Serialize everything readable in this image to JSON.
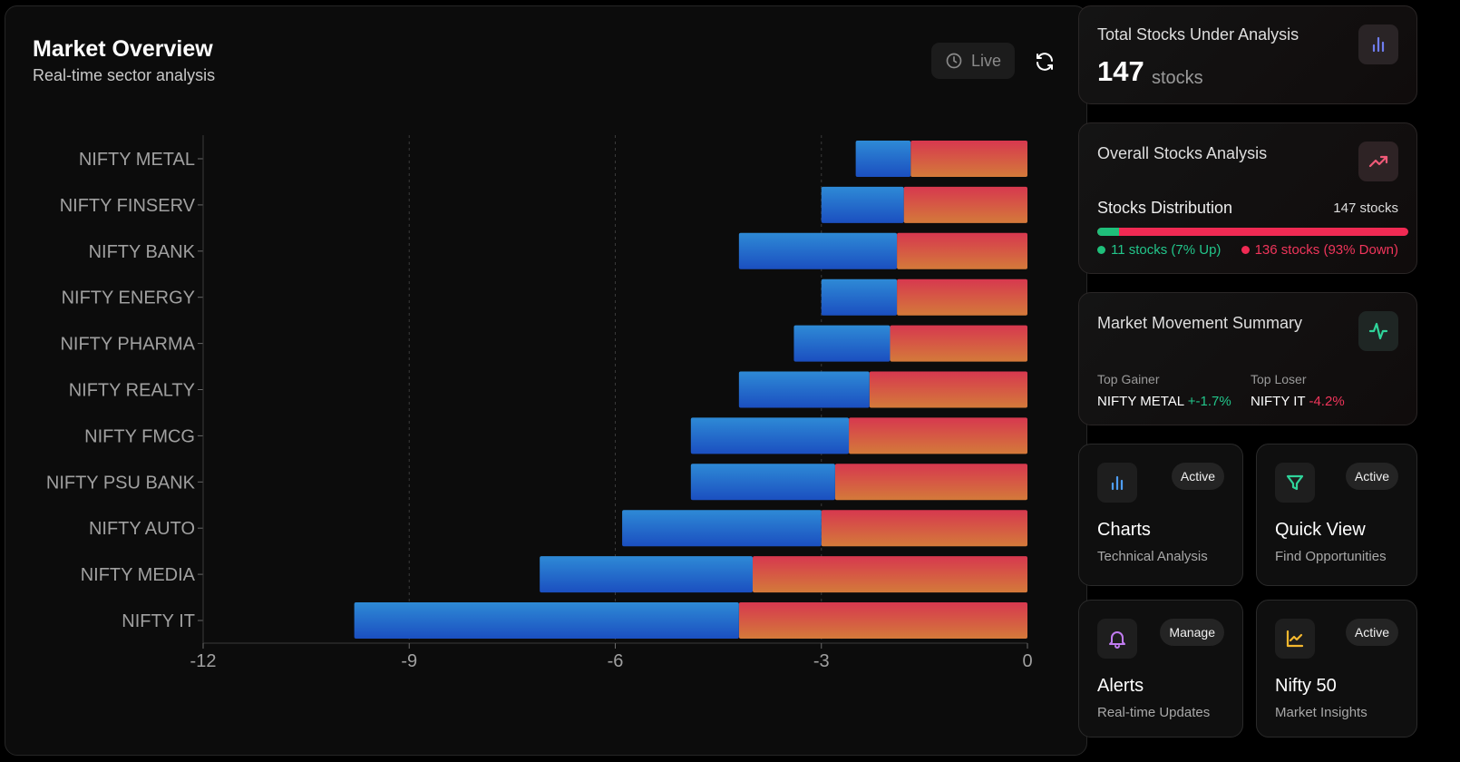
{
  "header": {
    "title": "Market Overview",
    "subtitle": "Real-time sector analysis",
    "live_label": "Live"
  },
  "chart_data": {
    "type": "bar",
    "orientation": "horizontal",
    "stacked": true,
    "title": "",
    "xlabel": "",
    "ylabel": "",
    "xlim": [
      -12,
      0
    ],
    "x_ticks": [
      -12,
      -9,
      -6,
      -3,
      0
    ],
    "grid": "vertical dashed",
    "categories": [
      "NIFTY METAL",
      "NIFTY FINSERV",
      "NIFTY BANK",
      "NIFTY ENERGY",
      "NIFTY PHARMA",
      "NIFTY REALTY",
      "NIFTY FMCG",
      "NIFTY PSU BANK",
      "NIFTY AUTO",
      "NIFTY MEDIA",
      "NIFTY IT"
    ],
    "series": [
      {
        "color": "#e2484f",
        "values": [
          -1.7,
          -1.8,
          -1.9,
          -1.9,
          -2.0,
          -2.3,
          -2.6,
          -2.8,
          -3.0,
          -4.0,
          -4.2
        ]
      },
      {
        "color": "#2f7fd9",
        "values": [
          -0.8,
          -1.2,
          -2.3,
          -1.1,
          -1.4,
          -1.9,
          -2.3,
          -2.1,
          -2.9,
          -3.1,
          -5.6
        ]
      }
    ]
  },
  "total_card": {
    "title": "Total Stocks Under Analysis",
    "count": "147",
    "unit": "stocks",
    "icon": "bar-chart-icon"
  },
  "overall_card": {
    "title": "Overall Stocks Analysis",
    "icon": "trending-up-icon",
    "dist_label": "Stocks Distribution",
    "dist_count": "147 stocks",
    "up_fraction": 0.07,
    "up_text": "11 stocks (7% Up)",
    "down_text": "136 stocks (93% Down)",
    "up_color": "#1fbf7a",
    "down_color": "#f02a53"
  },
  "movement_card": {
    "title": "Market Movement Summary",
    "icon": "activity-icon",
    "gainer_label": "Top Gainer",
    "gainer_name": "NIFTY METAL",
    "gainer_value": "+-1.7%",
    "loser_label": "Top Loser",
    "loser_name": "NIFTY IT",
    "loser_value": "-4.2%"
  },
  "tiles": [
    {
      "title": "Charts",
      "subtitle": "Technical Analysis",
      "badge": "Active",
      "icon": "bar-chart-icon"
    },
    {
      "title": "Quick View",
      "subtitle": "Find Opportunities",
      "badge": "Active",
      "icon": "filter-icon"
    },
    {
      "title": "Alerts",
      "subtitle": "Real-time Updates",
      "badge": "Manage",
      "icon": "bell-icon"
    },
    {
      "title": "Nifty 50",
      "subtitle": "Market Insights",
      "badge": "Active",
      "icon": "line-chart-icon"
    }
  ]
}
